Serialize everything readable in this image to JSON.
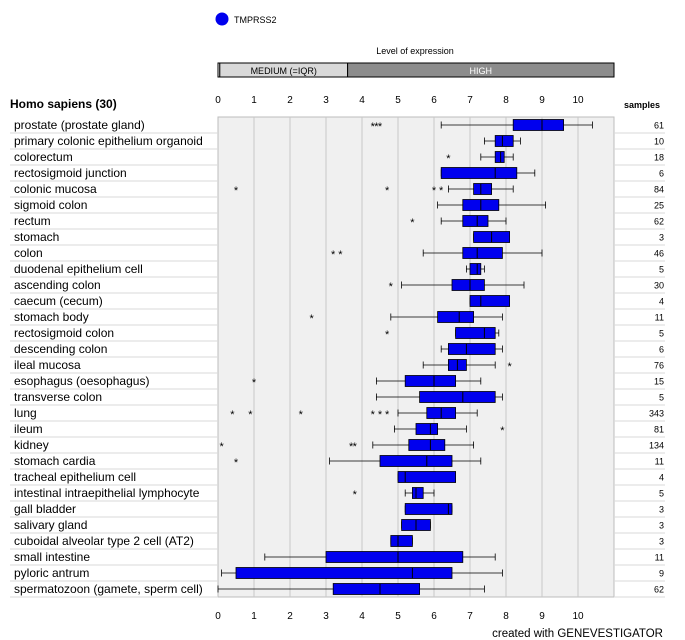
{
  "legend": {
    "series_name": "TMPRSS2",
    "color": "#0000ee"
  },
  "expression_bar": {
    "title": "Level of expression",
    "segments": [
      {
        "label": "",
        "from": 0,
        "to": 0.05,
        "color": "#ffffff"
      },
      {
        "label": "MEDIUM (=IQR)",
        "from": 0.05,
        "to": 3.6,
        "color": "#d9d9d9"
      },
      {
        "label": "HIGH",
        "from": 3.6,
        "to": 11,
        "color": "#8c8c8c"
      }
    ]
  },
  "organism_header": "Homo sapiens (30)",
  "samples_header": "samples",
  "footer": "created with GENEVESTIGATOR",
  "chart_data": {
    "type": "boxplot",
    "series": [
      {
        "name": "TMPRSS2"
      }
    ],
    "xlim": [
      0,
      11
    ],
    "xticks": [
      "0",
      "1",
      "2",
      "3",
      "4",
      "5",
      "6",
      "7",
      "8",
      "9",
      "10"
    ],
    "grid": true,
    "box_color": "#0000ee",
    "rows": [
      {
        "label": "prostate (prostate gland)",
        "samples": "61",
        "wmin": 6.2,
        "q1": 8.2,
        "median": 9.0,
        "q3": 9.6,
        "wmax": 10.4,
        "outliers": [
          4.3,
          4.4,
          4.5
        ]
      },
      {
        "label": "primary colonic epithelium organoid",
        "samples": "10",
        "wmin": 7.4,
        "q1": 7.7,
        "median": 7.9,
        "q3": 8.2,
        "wmax": 8.4,
        "outliers": []
      },
      {
        "label": "colorectum",
        "samples": "18",
        "wmin": 7.3,
        "q1": 7.7,
        "median": 7.85,
        "q3": 7.95,
        "wmax": 8.2,
        "outliers": [
          6.4
        ]
      },
      {
        "label": "rectosigmoid junction",
        "samples": "6",
        "wmin": 6.2,
        "q1": 6.2,
        "median": 7.7,
        "q3": 8.3,
        "wmax": 8.8,
        "outliers": []
      },
      {
        "label": "colonic mucosa",
        "samples": "84",
        "wmin": 6.4,
        "q1": 7.1,
        "median": 7.3,
        "q3": 7.6,
        "wmax": 8.2,
        "outliers": [
          0.5,
          4.7,
          6.0,
          6.2
        ]
      },
      {
        "label": "sigmoid colon",
        "samples": "25",
        "wmin": 6.1,
        "q1": 6.8,
        "median": 7.3,
        "q3": 7.8,
        "wmax": 9.1,
        "outliers": []
      },
      {
        "label": "rectum",
        "samples": "62",
        "wmin": 6.2,
        "q1": 6.8,
        "median": 7.2,
        "q3": 7.5,
        "wmax": 8.0,
        "outliers": [
          5.4
        ]
      },
      {
        "label": "stomach",
        "samples": "3",
        "wmin": 7.1,
        "q1": 7.1,
        "median": 7.6,
        "q3": 8.1,
        "wmax": 8.1,
        "outliers": []
      },
      {
        "label": "colon",
        "samples": "46",
        "wmin": 5.7,
        "q1": 6.8,
        "median": 7.2,
        "q3": 7.9,
        "wmax": 9.0,
        "outliers": [
          3.2,
          3.4
        ]
      },
      {
        "label": "duodenal epithelium cell",
        "samples": "5",
        "wmin": 6.9,
        "q1": 7.0,
        "median": 7.2,
        "q3": 7.3,
        "wmax": 7.4,
        "outliers": []
      },
      {
        "label": "ascending colon",
        "samples": "30",
        "wmin": 5.1,
        "q1": 6.5,
        "median": 7.0,
        "q3": 7.4,
        "wmax": 8.5,
        "outliers": [
          4.8
        ]
      },
      {
        "label": "caecum (cecum)",
        "samples": "4",
        "wmin": 7.0,
        "q1": 7.0,
        "median": 7.3,
        "q3": 8.1,
        "wmax": 8.1,
        "outliers": []
      },
      {
        "label": "stomach body",
        "samples": "11",
        "wmin": 4.8,
        "q1": 6.1,
        "median": 6.7,
        "q3": 7.1,
        "wmax": 7.9,
        "outliers": [
          2.6
        ]
      },
      {
        "label": "rectosigmoid colon",
        "samples": "5",
        "wmin": 6.6,
        "q1": 6.6,
        "median": 7.4,
        "q3": 7.7,
        "wmax": 7.8,
        "outliers": [
          4.7
        ]
      },
      {
        "label": "descending colon",
        "samples": "6",
        "wmin": 6.2,
        "q1": 6.4,
        "median": 6.9,
        "q3": 7.7,
        "wmax": 7.9,
        "outliers": []
      },
      {
        "label": "ileal mucosa",
        "samples": "76",
        "wmin": 5.7,
        "q1": 6.4,
        "median": 6.65,
        "q3": 6.9,
        "wmax": 7.7,
        "outliers": [
          8.1
        ]
      },
      {
        "label": "esophagus (oesophagus)",
        "samples": "15",
        "wmin": 4.4,
        "q1": 5.2,
        "median": 6.0,
        "q3": 6.6,
        "wmax": 7.3,
        "outliers": [
          1.0
        ]
      },
      {
        "label": "transverse colon",
        "samples": "5",
        "wmin": 4.4,
        "q1": 5.6,
        "median": 6.8,
        "q3": 7.7,
        "wmax": 7.9,
        "outliers": []
      },
      {
        "label": "lung",
        "samples": "343",
        "wmin": 5.0,
        "q1": 5.8,
        "median": 6.2,
        "q3": 6.6,
        "wmax": 7.2,
        "outliers": [
          0.4,
          0.9,
          2.3,
          4.3,
          4.5,
          4.7
        ]
      },
      {
        "label": "ileum",
        "samples": "81",
        "wmin": 4.9,
        "q1": 5.5,
        "median": 5.9,
        "q3": 6.1,
        "wmax": 6.9,
        "outliers": [
          7.9
        ]
      },
      {
        "label": "kidney",
        "samples": "134",
        "wmin": 4.3,
        "q1": 5.3,
        "median": 5.9,
        "q3": 6.3,
        "wmax": 7.1,
        "outliers": [
          0.1,
          3.7,
          3.8
        ]
      },
      {
        "label": "stomach cardia",
        "samples": "11",
        "wmin": 3.1,
        "q1": 4.5,
        "median": 5.8,
        "q3": 6.5,
        "wmax": 7.3,
        "outliers": [
          0.5
        ]
      },
      {
        "label": "tracheal epithelium cell",
        "samples": "4",
        "wmin": 5.0,
        "q1": 5.0,
        "median": 5.2,
        "q3": 6.6,
        "wmax": 6.6,
        "outliers": []
      },
      {
        "label": "intestinal intraepithelial lymphocyte",
        "samples": "5",
        "wmin": 5.2,
        "q1": 5.4,
        "median": 5.5,
        "q3": 5.7,
        "wmax": 6.0,
        "outliers": [
          3.8
        ]
      },
      {
        "label": "gall bladder",
        "samples": "3",
        "wmin": 5.2,
        "q1": 5.2,
        "median": 6.4,
        "q3": 6.5,
        "wmax": 6.5,
        "outliers": []
      },
      {
        "label": "salivary gland",
        "samples": "3",
        "wmin": 5.1,
        "q1": 5.1,
        "median": 5.5,
        "q3": 5.9,
        "wmax": 5.9,
        "outliers": []
      },
      {
        "label": "cuboidal alveolar type 2 cell (AT2)",
        "samples": "3",
        "wmin": 4.8,
        "q1": 4.8,
        "median": 5.0,
        "q3": 5.4,
        "wmax": 5.4,
        "outliers": []
      },
      {
        "label": "small intestine",
        "samples": "11",
        "wmin": 1.3,
        "q1": 3.0,
        "median": 5.0,
        "q3": 6.8,
        "wmax": 7.7,
        "outliers": []
      },
      {
        "label": "pyloric antrum",
        "samples": "9",
        "wmin": 0.1,
        "q1": 0.5,
        "median": 5.4,
        "q3": 6.5,
        "wmax": 7.9,
        "outliers": []
      },
      {
        "label": "spermatozoon (gamete, sperm cell)",
        "samples": "62",
        "wmin": 0.0,
        "q1": 3.2,
        "median": 4.5,
        "q3": 5.6,
        "wmax": 7.4,
        "outliers": []
      }
    ]
  }
}
